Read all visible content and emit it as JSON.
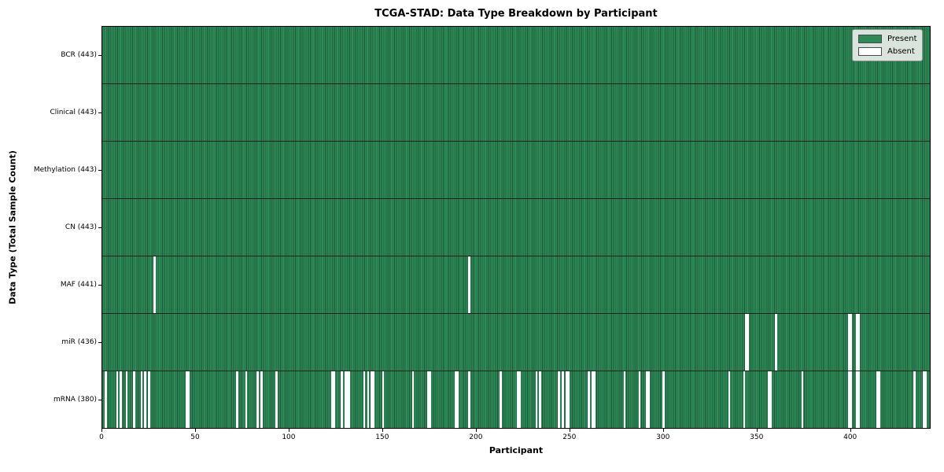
{
  "figure": {
    "title": "TCGA-STAD: Data Type Breakdown by Participant",
    "xlabel": "Participant",
    "ylabel": "Data Type (Total Sample Count)"
  },
  "legend": {
    "items": [
      {
        "label": "Present",
        "color": "#2e8b57"
      },
      {
        "label": "Absent",
        "color": "#ffffff"
      }
    ]
  },
  "chart_data": {
    "type": "heatmap",
    "title": "TCGA-STAD: Data Type Breakdown by Participant",
    "xlabel": "Participant",
    "ylabel": "Data Type (Total Sample Count)",
    "legend_position": "upper right",
    "legend_entries": [
      "Present",
      "Absent"
    ],
    "present_color": "#2e8b57",
    "absent_color": "#ffffff",
    "n_participants": 443,
    "x_range": [
      0,
      443
    ],
    "x_ticks": [
      0,
      50,
      100,
      150,
      200,
      250,
      300,
      350,
      400
    ],
    "rows": [
      {
        "label": "BCR (443)",
        "data_type": "BCR",
        "present_count": 443,
        "absent_participants": []
      },
      {
        "label": "Clinical (443)",
        "data_type": "Clinical",
        "present_count": 443,
        "absent_participants": []
      },
      {
        "label": "Methylation (443)",
        "data_type": "Methylation",
        "present_count": 443,
        "absent_participants": []
      },
      {
        "label": "CN (443)",
        "data_type": "CN",
        "present_count": 443,
        "absent_participants": []
      },
      {
        "label": "MAF (441)",
        "data_type": "MAF",
        "present_count": 441,
        "absent_participants": [
          28,
          196
        ]
      },
      {
        "label": "miR (436)",
        "data_type": "miR",
        "present_count": 436,
        "absent_participants": [
          344,
          345,
          360,
          399,
          400,
          403,
          404
        ]
      },
      {
        "label": "mRNA (380)",
        "data_type": "mRNA",
        "present_count": 380,
        "absent_participants": [
          2,
          8,
          10,
          13,
          17,
          21,
          23,
          25,
          45,
          46,
          72,
          77,
          83,
          85,
          93,
          123,
          124,
          128,
          130,
          131,
          132,
          140,
          142,
          144,
          145,
          150,
          166,
          174,
          175,
          189,
          190,
          196,
          213,
          222,
          223,
          232,
          234,
          244,
          246,
          248,
          249,
          260,
          262,
          263,
          279,
          287,
          291,
          292,
          300,
          335,
          343,
          356,
          357,
          374,
          399,
          400,
          403,
          404,
          414,
          415,
          434,
          439,
          440
        ]
      }
    ]
  }
}
